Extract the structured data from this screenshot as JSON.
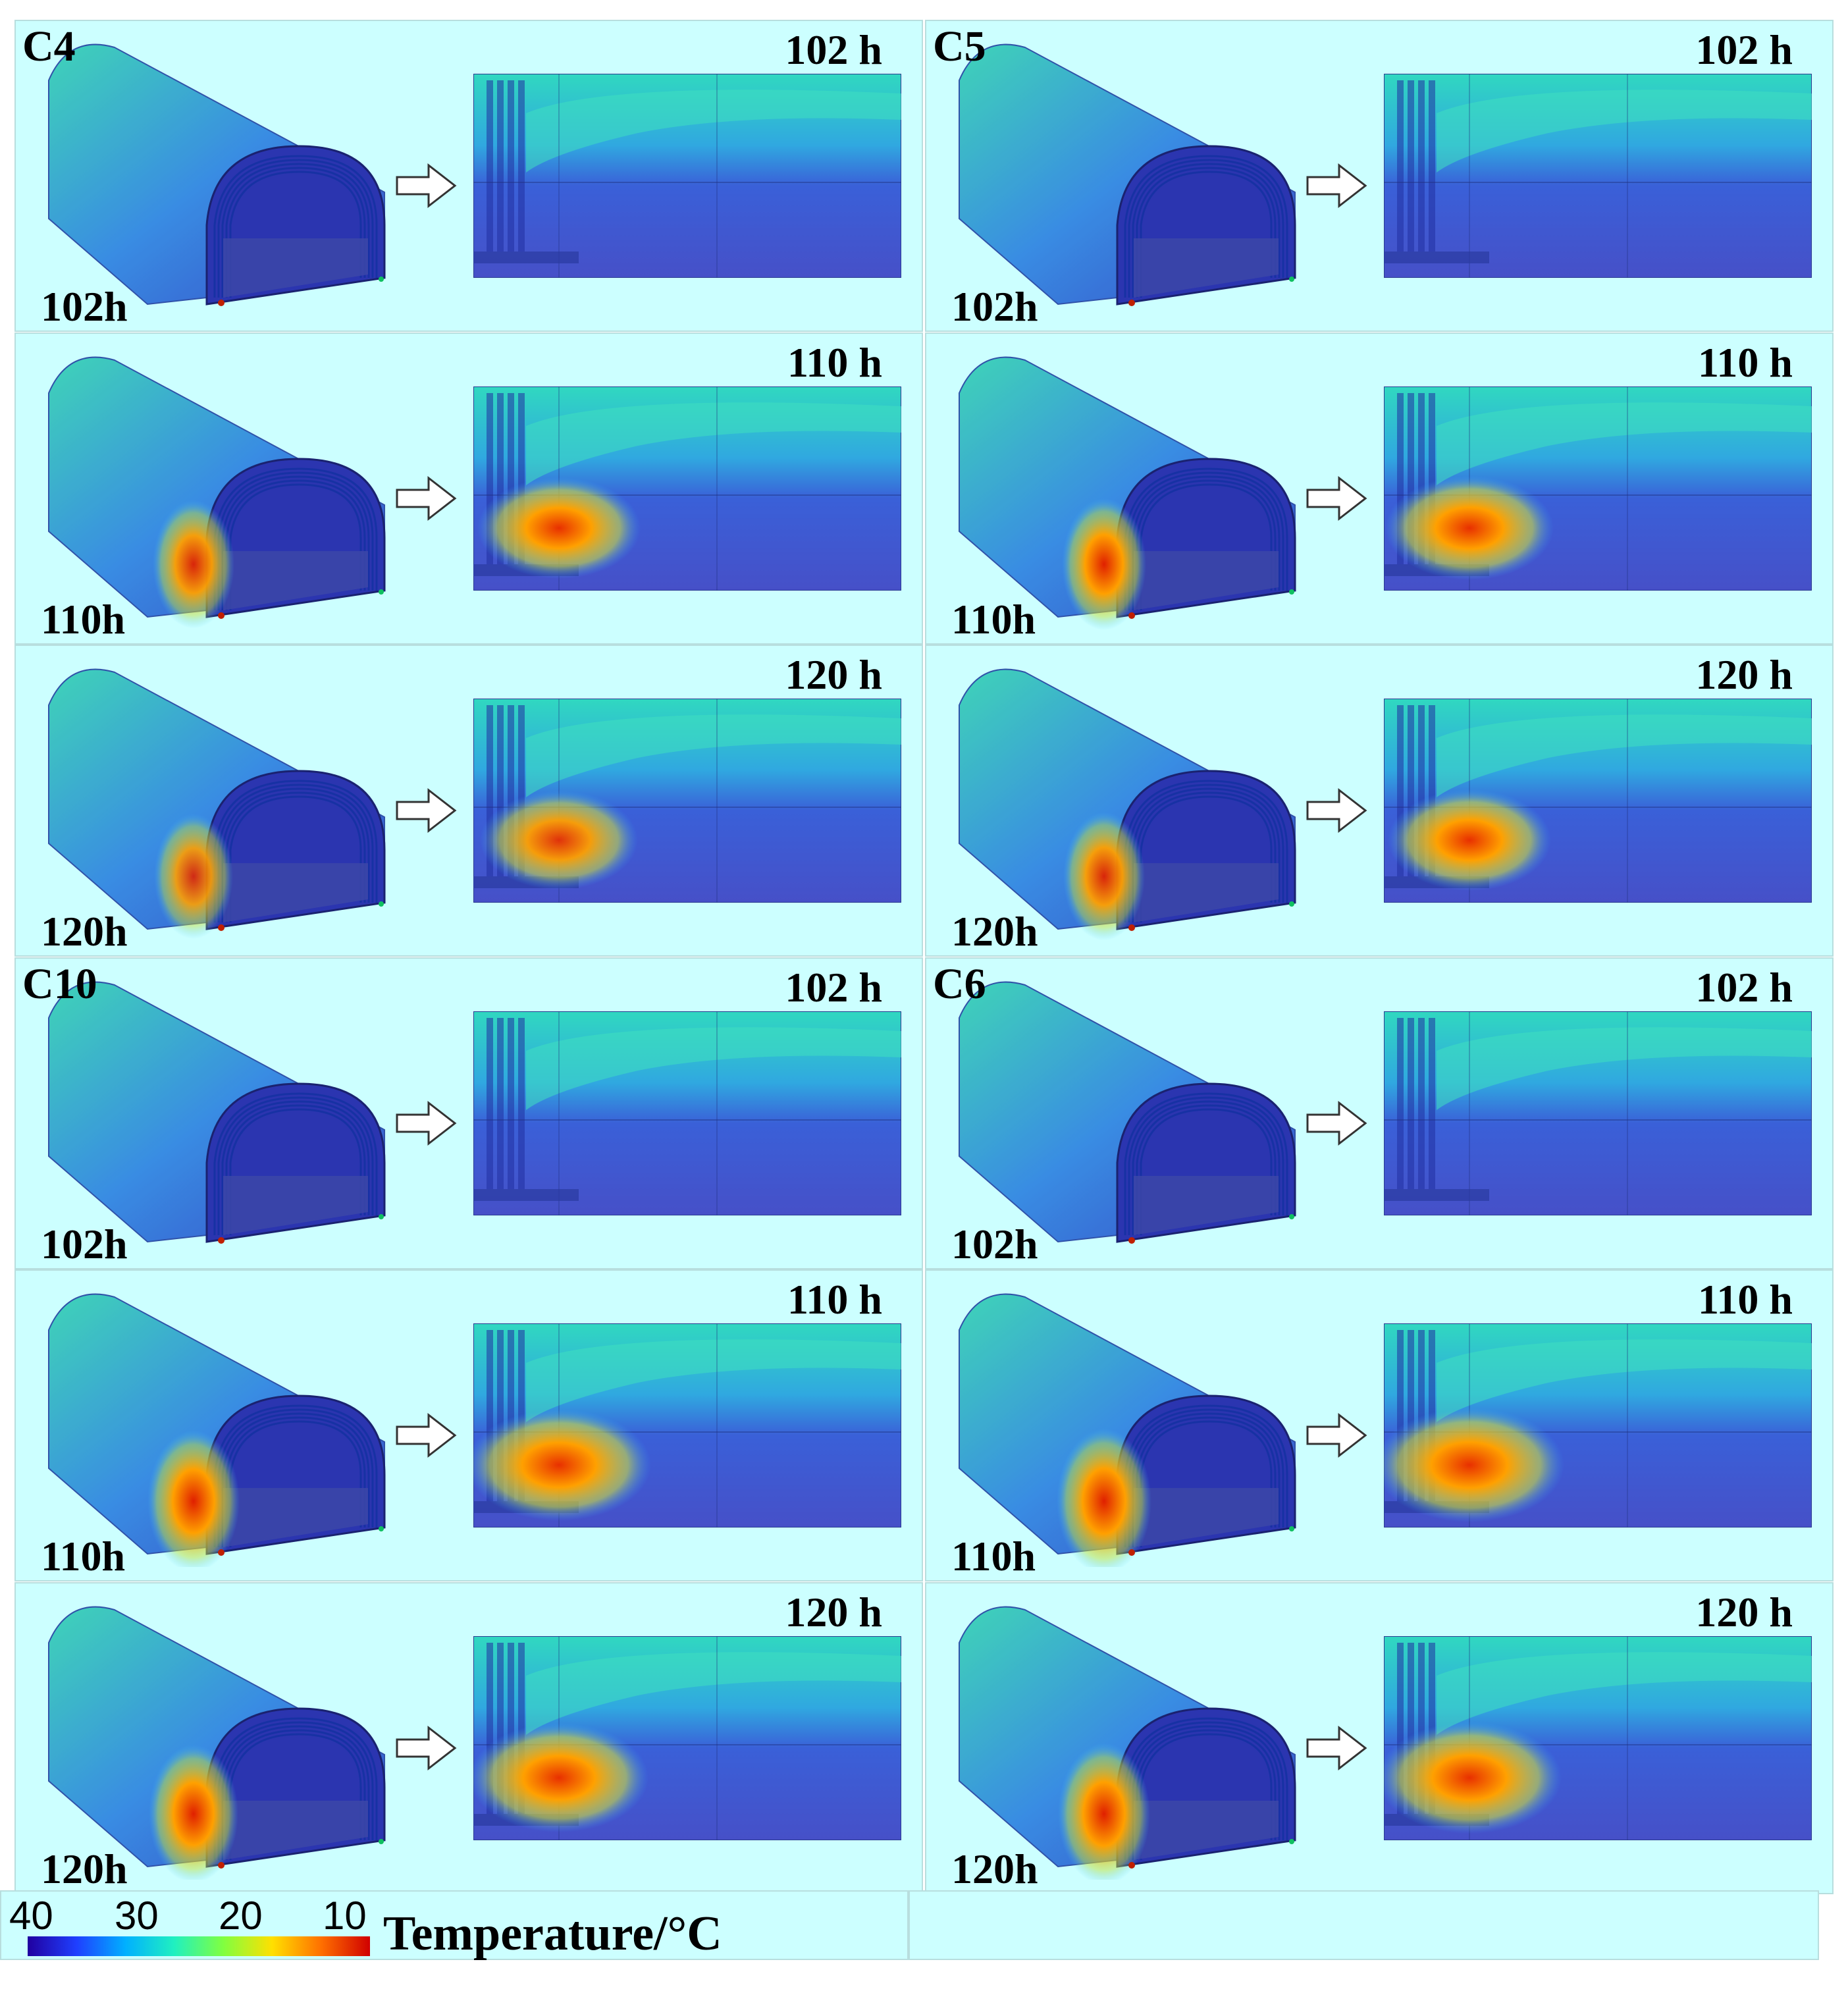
{
  "cases": [
    {
      "label": "C4",
      "rows": [
        {
          "top_time": "102 h",
          "bottom_time": "102h",
          "hot": 0
        },
        {
          "top_time": "110 h",
          "bottom_time": "110h",
          "hot": 0.55
        },
        {
          "top_time": "120 h",
          "bottom_time": "120h",
          "hot": 0.5
        }
      ]
    },
    {
      "label": "C5",
      "rows": [
        {
          "top_time": "102 h",
          "bottom_time": "102h",
          "hot": 0
        },
        {
          "top_time": "110 h",
          "bottom_time": "110h",
          "hot": 0.6
        },
        {
          "top_time": "120 h",
          "bottom_time": "120h",
          "hot": 0.55
        }
      ]
    },
    {
      "label": "C10",
      "rows": [
        {
          "top_time": "102 h",
          "bottom_time": "102h",
          "hot": 0
        },
        {
          "top_time": "110 h",
          "bottom_time": "110h",
          "hot": 0.75
        },
        {
          "top_time": "120 h",
          "bottom_time": "120h",
          "hot": 0.7
        }
      ]
    },
    {
      "label": "C6",
      "rows": [
        {
          "top_time": "102 h",
          "bottom_time": "102h",
          "hot": 0
        },
        {
          "top_time": "110 h",
          "bottom_time": "110h",
          "hot": 0.8
        },
        {
          "top_time": "120 h",
          "bottom_time": "120h",
          "hot": 0.75
        }
      ]
    }
  ],
  "legend": {
    "title": "Temperature/°C",
    "ticks": [
      "40",
      "30",
      "20",
      "10"
    ],
    "colors": [
      "#2000a0",
      "#1f3fff",
      "#00b0ff",
      "#20f0c0",
      "#80ff40",
      "#ffe000",
      "#ff7000",
      "#d00000"
    ]
  }
}
